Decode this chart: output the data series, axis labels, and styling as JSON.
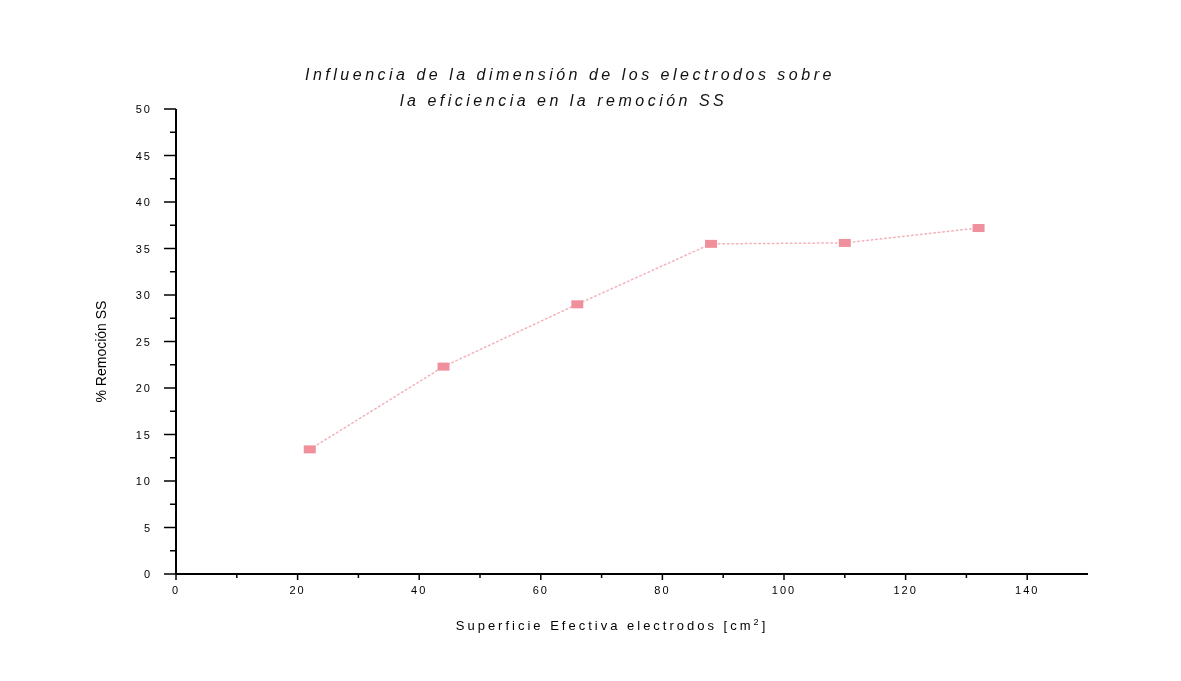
{
  "chart_data": {
    "type": "line",
    "title": "Influencia de la dimensión de los electrodos sobre\nla eficiencia en la remoción SS",
    "xlabel": "Superficie Efectiva electrodos [cm$^{2}$]",
    "ylabel": "% Remoción SS",
    "x": [
      22,
      44,
      66,
      88,
      110,
      132
    ],
    "series": [
      {
        "color": "#f0909c",
        "values": [
          13.4,
          22.3,
          29.0,
          35.5,
          35.6,
          37.2
        ]
      }
    ],
    "xlim": [
      0,
      150
    ],
    "xticks": [
      0,
      20,
      40,
      60,
      80,
      100,
      120,
      140
    ],
    "ylim": [
      0,
      50
    ],
    "yticks": [
      0,
      5,
      10,
      15,
      20,
      25,
      30,
      35,
      40,
      45,
      50
    ],
    "marker": "square",
    "line_style": "dotted",
    "grid": false
  }
}
